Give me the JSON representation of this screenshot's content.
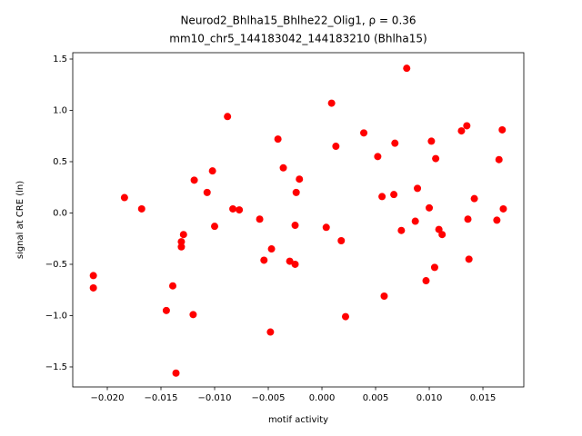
{
  "chart_data": {
    "type": "scatter",
    "title": "Neurod2_Bhlha15_Bhlhe22_Olig1, ρ = 0.36",
    "subtitle": "mm10_chr5_144183042_144183210 (Bhlha15)",
    "x_label": "motif activity",
    "y_label": "signal at CRE (ln)",
    "color": "#ff0000",
    "xlim": [
      -0.02322,
      0.01881
    ],
    "ylim": [
      -1.695,
      1.562
    ],
    "xticks": [
      {
        "value": -0.02,
        "label": "−0.020"
      },
      {
        "value": -0.015,
        "label": "−0.015"
      },
      {
        "value": -0.01,
        "label": "−0.010"
      },
      {
        "value": -0.005,
        "label": "−0.005"
      },
      {
        "value": 0,
        "label": "0.000"
      },
      0.005,
      {
        "value": 0.01,
        "label": "0.010"
      },
      0.015
    ],
    "yticks": [
      {
        "value": -1.5,
        "label": "−1.5"
      },
      {
        "value": -1,
        "label": "−1.0"
      },
      {
        "value": -0.5,
        "label": "−0.5"
      },
      {
        "value": 0,
        "label": "0.0"
      },
      0.5,
      {
        "value": 1,
        "label": "1.0"
      },
      1.5
    ],
    "x": [
      -0.0213,
      -0.0213,
      -0.0184,
      -0.0168,
      -0.0119,
      -0.0129,
      -0.0131,
      -0.0131,
      -0.0139,
      -0.0145,
      -0.012,
      -0.0136,
      -0.0107,
      -0.0102,
      -0.01,
      -0.0088,
      -0.0083,
      -0.0077,
      -0.0058,
      -0.0054,
      -0.0047,
      -0.0048,
      -0.0041,
      -0.0036,
      -0.003,
      -0.0025,
      -0.0025,
      -0.0024,
      -0.0021,
      0.0004,
      0.0009,
      0.0013,
      0.0018,
      0.0022,
      0.0039,
      0.0052,
      0.0056,
      0.0058,
      0.0067,
      0.0068,
      0.0074,
      0.0079,
      0.0087,
      0.0089,
      0.0097,
      0.01,
      0.0102,
      0.0105,
      0.0106,
      0.0109,
      0.0112,
      0.013,
      0.0135,
      0.0136,
      0.0137,
      0.0142,
      0.0163,
      0.0165,
      0.0168,
      0.0169
    ],
    "values": [
      -0.61,
      -0.73,
      0.15,
      0.04,
      0.32,
      -0.21,
      -0.28,
      -0.33,
      -0.71,
      -0.95,
      -0.99,
      -1.56,
      0.2,
      0.41,
      -0.13,
      0.94,
      0.04,
      0.03,
      -0.06,
      -0.46,
      -0.35,
      -1.16,
      0.72,
      0.44,
      -0.47,
      -0.5,
      -0.12,
      0.2,
      0.33,
      -0.14,
      1.07,
      0.65,
      -0.27,
      -1.01,
      0.78,
      0.55,
      0.16,
      -0.81,
      0.18,
      0.68,
      -0.17,
      1.41,
      -0.08,
      0.24,
      -0.66,
      0.05,
      0.7,
      -0.53,
      0.53,
      -0.16,
      -0.21,
      0.8,
      0.85,
      -0.06,
      -0.45,
      0.14,
      -0.07,
      0.52,
      0.81,
      0.04
    ]
  }
}
